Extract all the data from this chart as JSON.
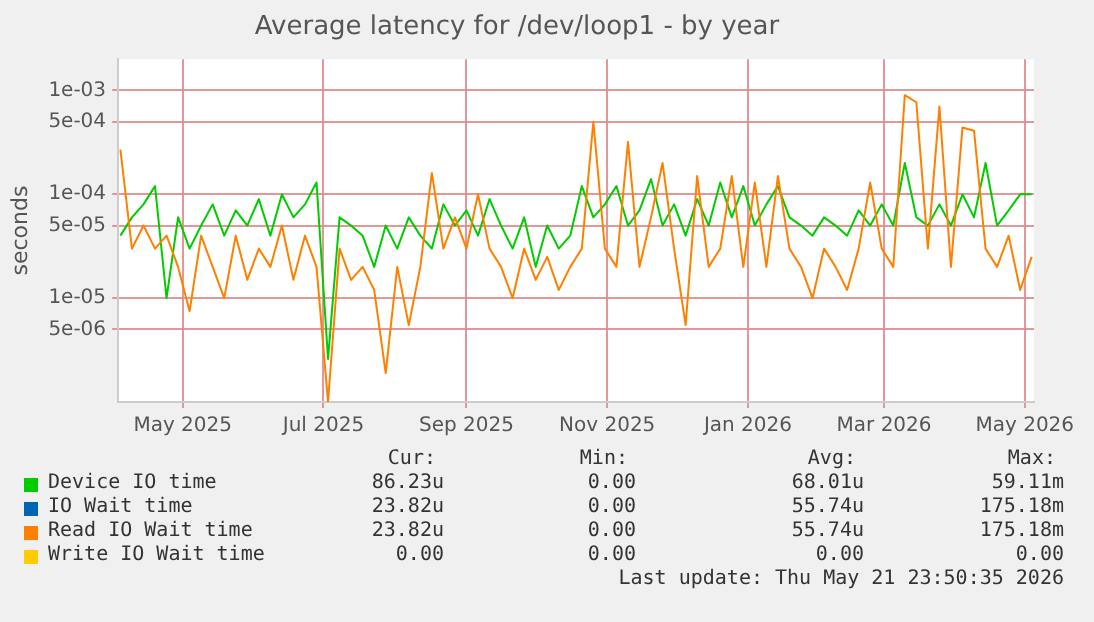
{
  "chart_data": {
    "type": "line",
    "title": "Average latency for /dev/loop1 - by year",
    "ylabel": "seconds",
    "log": true,
    "grid": true,
    "legend": "bottom",
    "marker": "none",
    "line_style": "solid",
    "x": [
      "2025-04-04",
      "2025-04-09",
      "2025-04-14",
      "2025-04-19",
      "2025-04-24",
      "2025-04-29",
      "2025-05-04",
      "2025-05-09",
      "2025-05-14",
      "2025-05-19",
      "2025-05-24",
      "2025-05-29",
      "2025-06-03",
      "2025-06-08",
      "2025-06-13",
      "2025-06-18",
      "2025-06-23",
      "2025-06-28",
      "2025-07-03",
      "2025-07-08",
      "2025-07-13",
      "2025-07-18",
      "2025-07-23",
      "2025-07-28",
      "2025-08-02",
      "2025-08-07",
      "2025-08-12",
      "2025-08-17",
      "2025-08-22",
      "2025-08-27",
      "2025-09-01",
      "2025-09-06",
      "2025-09-11",
      "2025-09-16",
      "2025-09-21",
      "2025-09-26",
      "2025-10-01",
      "2025-10-06",
      "2025-10-11",
      "2025-10-16",
      "2025-10-21",
      "2025-10-26",
      "2025-10-31",
      "2025-11-05",
      "2025-11-10",
      "2025-11-15",
      "2025-11-20",
      "2025-11-25",
      "2025-11-30",
      "2025-12-05",
      "2025-12-10",
      "2025-12-15",
      "2025-12-20",
      "2025-12-25",
      "2025-12-30",
      "2026-01-04",
      "2026-01-09",
      "2026-01-14",
      "2026-01-19",
      "2026-01-24",
      "2026-01-29",
      "2026-02-03",
      "2026-02-08",
      "2026-02-13",
      "2026-02-18",
      "2026-02-23",
      "2026-02-28",
      "2026-03-05",
      "2026-03-10",
      "2026-03-15",
      "2026-03-20",
      "2026-03-25",
      "2026-03-30",
      "2026-04-04",
      "2026-04-09",
      "2026-04-14",
      "2026-04-19",
      "2026-04-24",
      "2026-04-29",
      "2026-05-04"
    ],
    "xlim": [
      "2025-04-03",
      "2026-05-05"
    ],
    "xticks": [
      {
        "value": "2025-05-01",
        "label": "May 2025"
      },
      {
        "value": "2025-07-01",
        "label": "Jul 2025"
      },
      {
        "value": "2025-09-01",
        "label": "Sep 2025"
      },
      {
        "value": "2025-11-01",
        "label": "Nov 2025"
      },
      {
        "value": "2026-01-01",
        "label": "Jan 2026"
      },
      {
        "value": "2026-03-01",
        "label": "Mar 2026"
      },
      {
        "value": "2026-05-01",
        "label": "May 2026"
      }
    ],
    "ylim": [
      1e-06,
      0.002
    ],
    "yticks": [
      {
        "value": 5e-06,
        "label": "5e-06"
      },
      {
        "value": 1e-05,
        "label": "1e-05"
      },
      {
        "value": 5e-05,
        "label": "5e-05"
      },
      {
        "value": 0.0001,
        "label": "1e-04"
      },
      {
        "value": 0.0005,
        "label": "5e-04"
      },
      {
        "value": 0.001,
        "label": "1e-03"
      }
    ],
    "series": [
      {
        "name": "Device IO time",
        "color": "#00cc00",
        "values": [
          4e-05,
          6e-05,
          8e-05,
          0.00012,
          1e-05,
          6e-05,
          3e-05,
          5e-05,
          8e-05,
          4e-05,
          7e-05,
          5e-05,
          9e-05,
          4e-05,
          0.0001,
          6e-05,
          8e-05,
          0.00013,
          2.6e-06,
          6e-05,
          5e-05,
          4e-05,
          2e-05,
          5e-05,
          3e-05,
          6e-05,
          4e-05,
          3e-05,
          8e-05,
          5e-05,
          7e-05,
          4e-05,
          9e-05,
          5e-05,
          3e-05,
          6e-05,
          2e-05,
          5e-05,
          3e-05,
          4e-05,
          0.00012,
          6e-05,
          8e-05,
          0.00012,
          5e-05,
          7e-05,
          0.00014,
          5e-05,
          8e-05,
          4e-05,
          9e-05,
          5e-05,
          0.00013,
          6e-05,
          0.00012,
          5e-05,
          8e-05,
          0.00012,
          6e-05,
          5e-05,
          4e-05,
          6e-05,
          5e-05,
          4e-05,
          7e-05,
          5e-05,
          8e-05,
          5e-05,
          0.0002,
          6e-05,
          5e-05,
          8e-05,
          5e-05,
          0.0001,
          6e-05,
          0.0002,
          5e-05,
          7e-05,
          0.0001,
          0.0001
        ]
      },
      {
        "name": "IO Wait time",
        "color": "#0066b3",
        "values": [
          null,
          null,
          null,
          null,
          null,
          null,
          null,
          null,
          null,
          null,
          null,
          null,
          null,
          null,
          null,
          null,
          null,
          null,
          null,
          null,
          null,
          null,
          null,
          null,
          null,
          null,
          null,
          null,
          null,
          null,
          null,
          null,
          null,
          null,
          null,
          null,
          null,
          null,
          null,
          null,
          null,
          null,
          null,
          null,
          null,
          null,
          null,
          null,
          null,
          null,
          null,
          null,
          null,
          null,
          null,
          null,
          null,
          null,
          null,
          null,
          null,
          null,
          null,
          null,
          null,
          null,
          null,
          null,
          null,
          null,
          null,
          null,
          null,
          null,
          null,
          null,
          null,
          null,
          null,
          null
        ]
      },
      {
        "name": "Read IO Wait time",
        "color": "#ff8000",
        "values": [
          0.00027,
          3e-05,
          5e-05,
          3e-05,
          4e-05,
          2e-05,
          7.5e-06,
          4e-05,
          2e-05,
          1e-05,
          4e-05,
          1.5e-05,
          3e-05,
          2e-05,
          5e-05,
          1.5e-05,
          4e-05,
          2e-05,
          1e-06,
          3e-05,
          1.5e-05,
          2e-05,
          1.2e-05,
          1.9e-06,
          2e-05,
          5.5e-06,
          2e-05,
          0.00016,
          3e-05,
          6e-05,
          3e-05,
          0.0001,
          3e-05,
          2e-05,
          1e-05,
          3e-05,
          1.5e-05,
          2.5e-05,
          1.2e-05,
          2e-05,
          3e-05,
          0.0005,
          3e-05,
          2e-05,
          0.00032,
          2e-05,
          6e-05,
          0.0002,
          3e-05,
          5.5e-06,
          0.00015,
          2e-05,
          3e-05,
          0.00015,
          2e-05,
          0.00013,
          2e-05,
          0.00015,
          3e-05,
          2e-05,
          1e-05,
          3e-05,
          2e-05,
          1.2e-05,
          3e-05,
          0.00013,
          3e-05,
          2e-05,
          0.0009,
          0.00077,
          3e-05,
          0.0007,
          2e-05,
          0.00044,
          0.00041,
          3e-05,
          2e-05,
          4e-05,
          1.2e-05,
          2.5e-05
        ]
      },
      {
        "name": "Write IO Wait time",
        "color": "#ffcc00",
        "values": [
          null,
          null,
          null,
          null,
          null,
          null,
          null,
          null,
          null,
          null,
          null,
          null,
          null,
          null,
          null,
          null,
          null,
          null,
          null,
          null,
          null,
          null,
          null,
          null,
          null,
          null,
          null,
          null,
          null,
          null,
          null,
          null,
          null,
          null,
          null,
          null,
          null,
          null,
          null,
          null,
          null,
          null,
          null,
          null,
          null,
          null,
          null,
          null,
          null,
          null,
          null,
          null,
          null,
          null,
          null,
          null,
          null,
          null,
          null,
          null,
          null,
          null,
          null,
          null,
          null,
          null,
          null,
          null,
          null,
          null,
          null,
          null,
          null,
          null,
          null,
          null,
          null,
          null,
          null,
          null
        ]
      }
    ],
    "annotations": [
      "Cur:",
      "Min:",
      "Avg:",
      "Max:",
      "86.23u",
      "0.00",
      "68.01u",
      "59.11m",
      "23.82u",
      "0.00",
      "55.74u",
      "175.18m",
      "23.82u",
      "0.00",
      "55.74u",
      "175.18m",
      "0.00",
      "0.00",
      "0.00",
      "0.00",
      "Last update: Thu May 21 23:50:35 2026"
    ]
  }
}
